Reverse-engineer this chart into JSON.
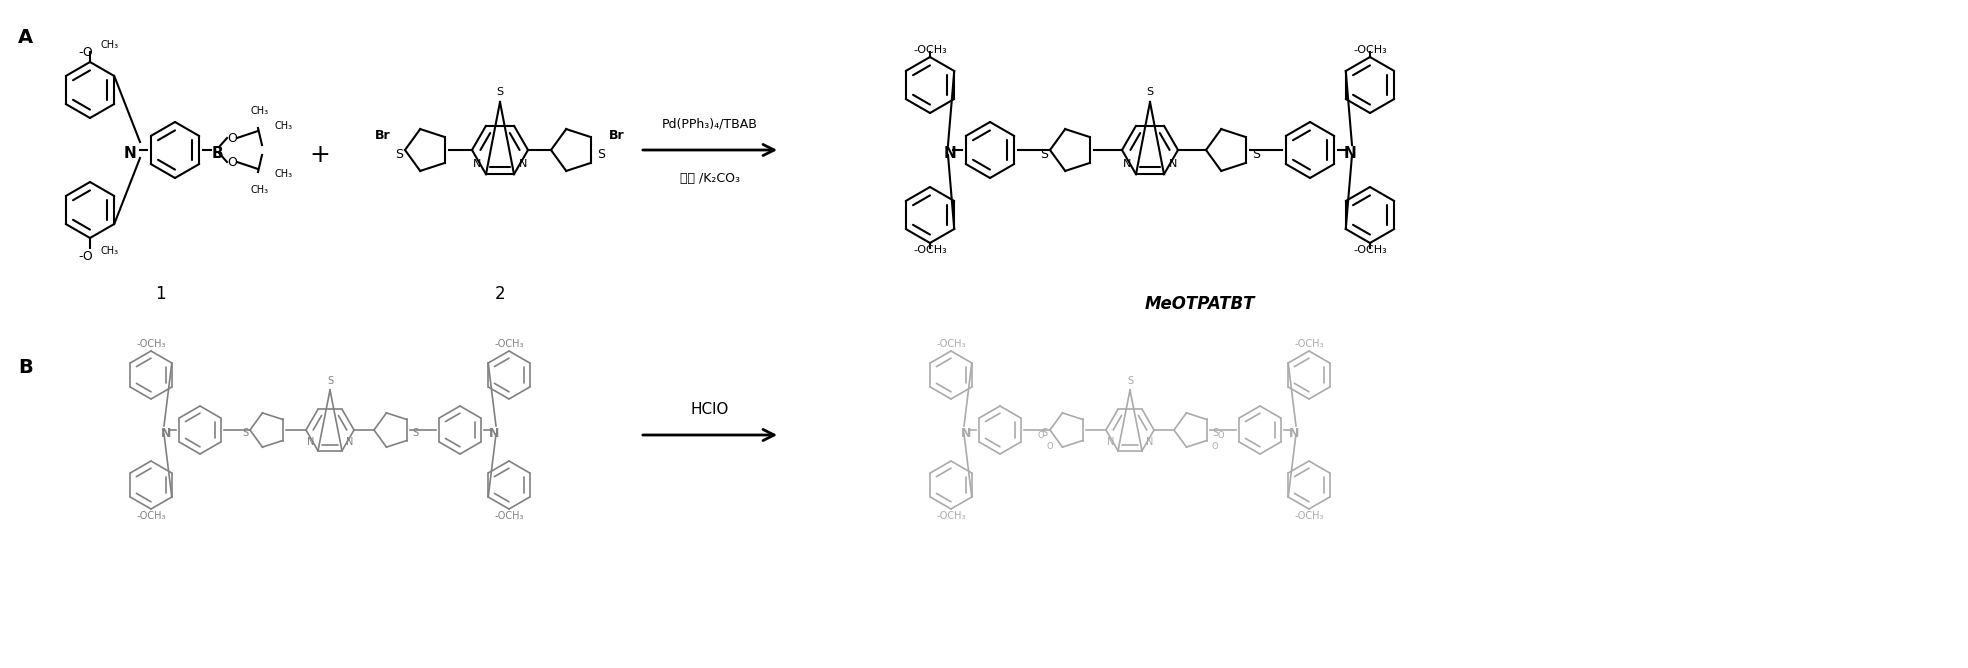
{
  "bg_color": "#ffffff",
  "label_A": "A",
  "label_B": "B",
  "label_1": "1",
  "label_2": "2",
  "label_MeOTPATBT": "MeOTPATBT",
  "reagents_line1": "Pd(PPh₃)₄/TBAB",
  "reagents_line2": "甲苯 /K₂CO₃",
  "hclo_label": "HClO",
  "plus_sign": "+",
  "fig_width": 19.68,
  "fig_height": 6.68,
  "dpi": 100
}
